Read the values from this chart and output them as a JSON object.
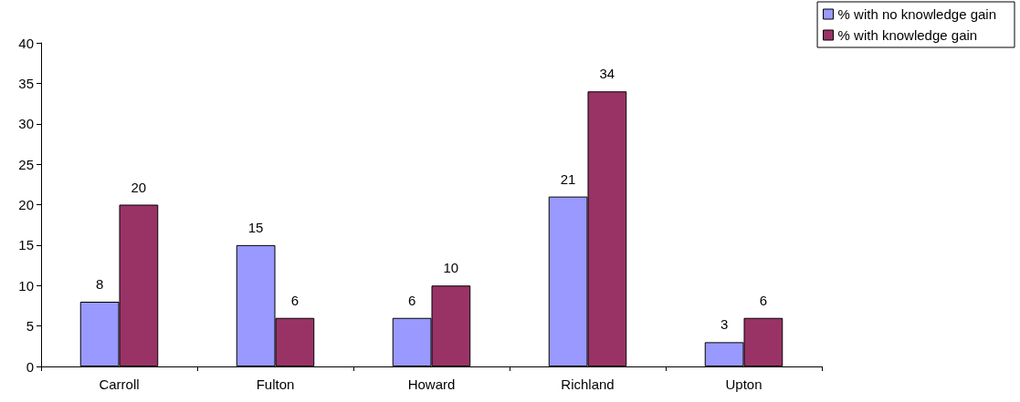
{
  "chart_data": {
    "type": "bar",
    "categories": [
      "Carroll",
      "Fulton",
      "Howard",
      "Richland",
      "Upton"
    ],
    "series": [
      {
        "name": "% with no knowledge gain",
        "color": "#9999ff",
        "values": [
          8,
          15,
          6,
          21,
          3
        ]
      },
      {
        "name": "% with knowledge gain",
        "color": "#993366",
        "values": [
          20,
          6,
          10,
          34,
          6
        ]
      }
    ],
    "ylim": [
      0,
      40
    ],
    "yticks": [
      0,
      5,
      10,
      15,
      20,
      25,
      30,
      35,
      40
    ],
    "grid": false,
    "legend": "top right",
    "data_labels": true
  }
}
